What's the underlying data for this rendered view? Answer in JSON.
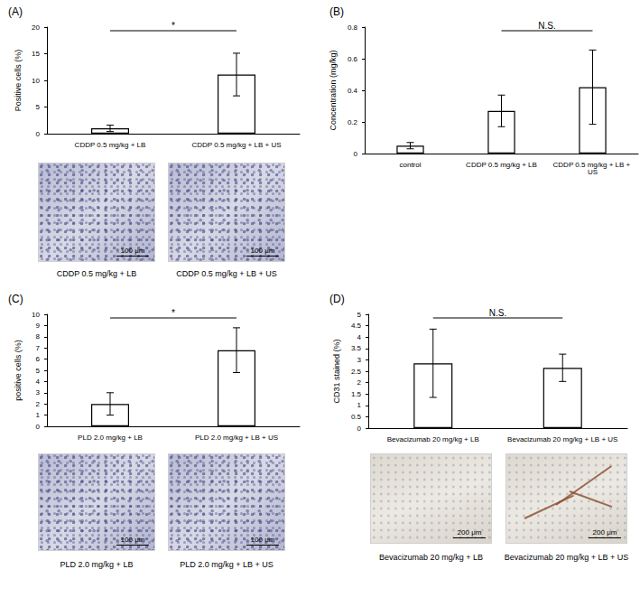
{
  "chart_data": [
    {
      "type": "bar",
      "title": "(A)",
      "y_label": "Positive cells (%)",
      "categories": [
        "CDDP 0.5 mg/kg + LB",
        "CDDP 0.5 mg/kg + LB + US"
      ],
      "values": [
        1.0,
        11.1
      ],
      "errors": [
        0.6,
        4.0
      ],
      "color": "#ffffff",
      "ylim": [
        0,
        20
      ],
      "yticks": [
        0,
        5,
        10,
        15,
        20
      ],
      "grid": false,
      "comparison": {
        "between": [
          "CDDP 0.5 mg/kg + LB",
          "CDDP 0.5 mg/kg + LB + US"
        ],
        "label": "*"
      },
      "images": [
        {
          "caption": "CDDP 0.5 mg/kg + LB",
          "scale_bar": "100 μm"
        },
        {
          "caption": "CDDP 0.5 mg/kg + LB + US",
          "scale_bar": "100 μm"
        }
      ]
    },
    {
      "type": "bar",
      "title": "(B)",
      "y_label": "Concentration (mg/kg)",
      "categories": [
        "control",
        "CDDP 0.5 mg/kg + LB",
        "CDDP 0.5 mg/kg + LB + US"
      ],
      "values": [
        0.05,
        0.27,
        0.42
      ],
      "errors": [
        0.02,
        0.1,
        0.235
      ],
      "color": "#ffffff",
      "ylim": [
        0,
        0.8
      ],
      "yticks": [
        0,
        0.2,
        0.4,
        0.6,
        0.8
      ],
      "grid": false,
      "comparison": {
        "between": [
          "CDDP 0.5 mg/kg + LB",
          "CDDP 0.5 mg/kg + LB + US"
        ],
        "label": "N.S."
      },
      "images": []
    },
    {
      "type": "bar",
      "title": "(C)",
      "y_label": "positive cells (%)",
      "categories": [
        "PLD 2.0 mg/kg + LB",
        "PLD 2.0 mg/kg + LB + US"
      ],
      "values": [
        2.0,
        6.8
      ],
      "errors": [
        1.0,
        2.0
      ],
      "color": "#ffffff",
      "ylim": [
        0,
        10
      ],
      "yticks": [
        0,
        1,
        2,
        3,
        4,
        5,
        6,
        7,
        8,
        9,
        10
      ],
      "grid": false,
      "comparison": {
        "between": [
          "PLD 2.0 mg/kg + LB",
          "PLD 2.0 mg/kg + LB + US"
        ],
        "label": "*"
      },
      "images": [
        {
          "caption": "PLD 2.0 mg/kg + LB",
          "scale_bar": "100 μm"
        },
        {
          "caption": "PLD 2.0 mg/kg + LB + US",
          "scale_bar": "100 μm"
        }
      ]
    },
    {
      "type": "bar",
      "title": "(D)",
      "y_label": "CD31 stained (%)",
      "categories": [
        "Bevacizumab 20 mg/kg + LB",
        "Bevacizumab 20 mg/kg + LB + US"
      ],
      "values": [
        2.85,
        2.65
      ],
      "errors": [
        1.5,
        0.6
      ],
      "color": "#ffffff",
      "ylim": [
        0,
        5
      ],
      "yticks": [
        0,
        0.5,
        1,
        1.5,
        2,
        2.5,
        3,
        3.5,
        4,
        4.5,
        5
      ],
      "grid": false,
      "comparison": {
        "between": [
          "Bevacizumab 20 mg/kg + LB",
          "Bevacizumab 20 mg/kg + LB + US"
        ],
        "label": "N.S."
      },
      "images": [
        {
          "caption": "Bevacizumab 20 mg/kg + LB",
          "scale_bar": "200 μm"
        },
        {
          "caption": "Bevacizumab 20 mg/kg + LB + US",
          "scale_bar": "200 μm"
        }
      ]
    }
  ]
}
